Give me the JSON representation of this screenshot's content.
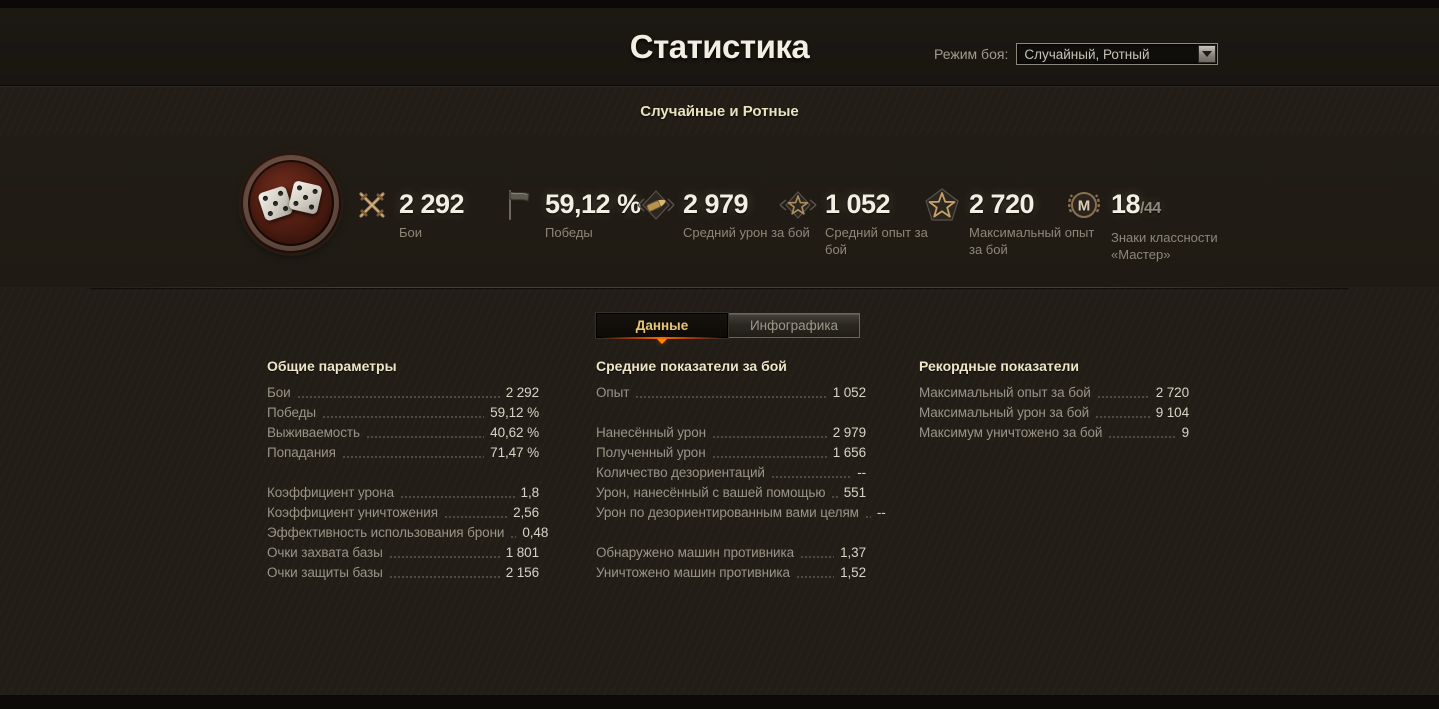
{
  "header": {
    "title": "Статистика",
    "battle_mode_label": "Режим боя:",
    "battle_mode_value": "Случайный, Ротный"
  },
  "subtitle": "Случайные и Ротные",
  "summary": {
    "emblem": "dice-medallion",
    "items": [
      {
        "icon": "crossed-swords-icon",
        "value": "2 292",
        "label": "Бои"
      },
      {
        "icon": "flag-icon",
        "value": "59,12 %",
        "label": "Победы"
      },
      {
        "icon": "shell-icon",
        "value": "2 979",
        "label": "Средний урон за бой"
      },
      {
        "icon": "star-diamond-icon",
        "value": "1 052",
        "label": "Средний опыт за бой"
      },
      {
        "icon": "star-icon",
        "value": "2 720",
        "label": "Максимальный опыт за бой"
      },
      {
        "icon": "master-badge-icon",
        "value": "18",
        "value_suffix": "/44",
        "label": "Знаки классности «Мастер»"
      }
    ]
  },
  "tabs": [
    {
      "label": "Данные",
      "active": true
    },
    {
      "label": "Инфографика",
      "active": false
    }
  ],
  "columns": [
    {
      "title": "Общие параметры",
      "rows": [
        {
          "label": "Бои",
          "value": "2 292"
        },
        {
          "label": "Победы",
          "value": "59,12 %"
        },
        {
          "label": "Выживаемость",
          "value": "40,62 %"
        },
        {
          "label": "Попадания",
          "value": "71,47 %"
        },
        {
          "label": "",
          "value": ""
        },
        {
          "label": "Коэффициент урона",
          "value": "1,8"
        },
        {
          "label": "Коэффициент уничтожения",
          "value": "2,56"
        },
        {
          "label": "Эффективность использования брони",
          "value": "0,48"
        },
        {
          "label": "Очки захвата базы",
          "value": "1 801"
        },
        {
          "label": "Очки защиты базы",
          "value": "2 156"
        }
      ]
    },
    {
      "title": "Средние показатели за бой",
      "rows": [
        {
          "label": "Опыт",
          "value": "1 052"
        },
        {
          "label": "",
          "value": ""
        },
        {
          "label": "Нанесённый урон",
          "value": "2 979"
        },
        {
          "label": "Полученный урон",
          "value": "1 656"
        },
        {
          "label": "Количество дезориентаций",
          "value": "--"
        },
        {
          "label": "Урон, нанесённый с вашей помощью",
          "value": "551"
        },
        {
          "label": "Урон по дезориентированным вами целям",
          "value": "--"
        },
        {
          "label": "",
          "value": ""
        },
        {
          "label": "Обнаружено машин противника",
          "value": "1,37"
        },
        {
          "label": "Уничтожено машин противника",
          "value": "1,52"
        }
      ]
    },
    {
      "title": "Рекордные показатели",
      "rows": [
        {
          "label": "Максимальный опыт за бой",
          "value": "2 720"
        },
        {
          "label": "Максимальный урон за бой",
          "value": "9 104"
        },
        {
          "label": "Максимум уничтожено за бой",
          "value": "9"
        }
      ]
    }
  ],
  "colors": {
    "accent_gold": "#e8c678",
    "header_cream": "#ede6c8",
    "value_white": "#d8d4c6",
    "label_gray": "#9a9486",
    "tab_glow_orange": "#ff6a00",
    "emblem_maroon": "#4a1b10",
    "background": "#221e17"
  }
}
